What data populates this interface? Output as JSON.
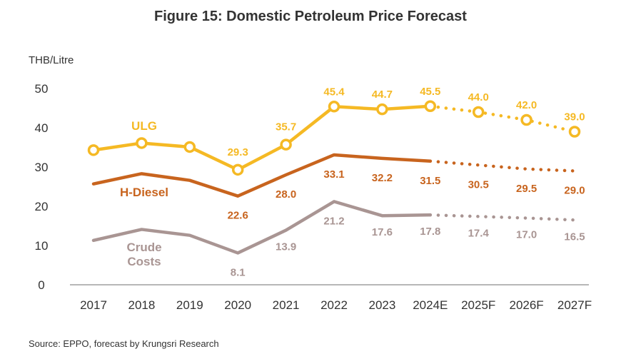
{
  "chart_data": {
    "type": "line",
    "title": "Figure 15: Domestic Petroleum Price Forecast",
    "ylabel": "THB/Litre",
    "xlabel": "",
    "ylim": [
      0,
      50
    ],
    "yticks": [
      0,
      10,
      20,
      30,
      40,
      50
    ],
    "categories": [
      "2017",
      "2018",
      "2019",
      "2020",
      "2021",
      "2022",
      "2023",
      "2024E",
      "2025F",
      "2026F",
      "2027F"
    ],
    "forecast_start_index": 7,
    "grid": false,
    "series": [
      {
        "name": "ULG",
        "color": "#F5B924",
        "marker": "ring",
        "values": [
          34.3,
          36.1,
          35.1,
          29.3,
          35.7,
          45.4,
          44.7,
          45.5,
          44.0,
          42.0,
          39.0
        ],
        "data_labels": [
          "",
          "",
          "",
          "29.3",
          "35.7",
          "45.4",
          "44.7",
          "45.5",
          "44.0",
          "42.0",
          "39.0"
        ]
      },
      {
        "name": "H-Diesel",
        "color": "#C8641E",
        "marker": "none",
        "values": [
          25.7,
          28.3,
          26.6,
          22.6,
          28.0,
          33.1,
          32.2,
          31.5,
          30.5,
          29.5,
          29.0
        ],
        "data_labels": [
          "",
          "",
          "",
          "22.6",
          "28.0",
          "33.1",
          "32.2",
          "31.5",
          "30.5",
          "29.5",
          "29.0"
        ]
      },
      {
        "name": "Crude Costs",
        "name_lines": [
          "Crude",
          "Costs"
        ],
        "color": "#A99593",
        "marker": "none",
        "values": [
          11.3,
          14.1,
          12.6,
          8.1,
          13.9,
          21.2,
          17.6,
          17.8,
          17.4,
          17.0,
          16.5
        ],
        "data_labels": [
          "",
          "",
          "",
          "8.1",
          "13.9",
          "21.2",
          "17.6",
          "17.8",
          "17.4",
          "17.0",
          "16.5"
        ]
      }
    ]
  },
  "source_note": "Source: EPPO, forecast by Krungsri Research"
}
